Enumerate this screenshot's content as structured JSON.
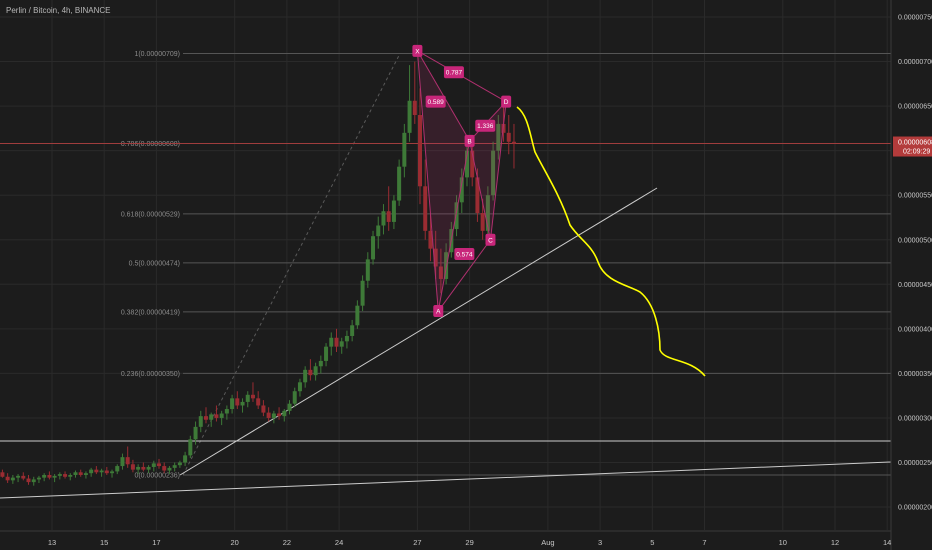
{
  "header": {
    "title": "Perlin / Bitcoin, 4h, BINANCE"
  },
  "colors": {
    "background": "#1c1c1c",
    "grid": "#2a2a2a",
    "up_candle": "#3e7a38",
    "down_candle": "#9a2c32",
    "fib_line": "#555555",
    "harmonic": "#b0306f",
    "harmonic_label": "#c8267a",
    "projection": "#ffff00",
    "trendline": "#cccccc",
    "price_line": "#a03d3d"
  },
  "chart_data": {
    "type": "candlestick",
    "title": "Perlin / Bitcoin, 4h, BINANCE",
    "y_axis": {
      "range": [
        1.8e-06,
        7.6e-06
      ],
      "ticks": [
        "0.00000750",
        "0.00000700",
        "0.00000650",
        "0.00000600",
        "0.00000550",
        "0.00000500",
        "0.00000450",
        "0.00000400",
        "0.00000350",
        "0.00000300",
        "0.00000250",
        "0.00000200"
      ]
    },
    "x_axis": {
      "ticks": [
        "13",
        "15",
        "17",
        "20",
        "22",
        "24",
        "27",
        "29",
        "Aug",
        "3",
        "5",
        "7",
        "10",
        "12",
        "14"
      ]
    },
    "current_price": {
      "value": "0.00000608",
      "countdown": "02:09:29"
    },
    "fib_levels": [
      {
        "label": "1(0.00000709)",
        "value": 7.09e-06
      },
      {
        "label": "0.786(0.00000608)",
        "value": 6.08e-06
      },
      {
        "label": "0.618(0.00000529)",
        "value": 5.29e-06
      },
      {
        "label": "0.5(0.00000474)",
        "value": 4.74e-06
      },
      {
        "label": "0.382(0.00000419)",
        "value": 4.19e-06
      },
      {
        "label": "0.236(0.00000350)",
        "value": 3.5e-06
      },
      {
        "label": "0(0.00000236)",
        "value": 2.36e-06
      }
    ],
    "harmonic_pattern": {
      "points": [
        {
          "label": "X",
          "x": 27.0,
          "y": 7.12e-06
        },
        {
          "label": "A",
          "x": 27.8,
          "y": 4.2e-06
        },
        {
          "label": "B",
          "x": 29.0,
          "y": 6.11e-06
        },
        {
          "label": "C",
          "x": 29.8,
          "y": 5e-06
        },
        {
          "label": "D",
          "x": 30.4,
          "y": 6.55e-06
        }
      ],
      "ratios": [
        {
          "label": "0.589",
          "x": 27.7,
          "y": 6.55e-06
        },
        {
          "label": "0.787",
          "x": 28.4,
          "y": 6.88e-06
        },
        {
          "label": "0.574",
          "x": 28.8,
          "y": 4.84e-06
        },
        {
          "label": "1.336",
          "x": 29.6,
          "y": 6.28e-06
        }
      ]
    },
    "candles": [
      {
        "x": 10.1,
        "o": 2.38,
        "h": 2.44,
        "l": 2.32,
        "c": 2.34
      },
      {
        "x": 10.3,
        "o": 2.34,
        "h": 2.4,
        "l": 2.3,
        "c": 2.37
      },
      {
        "x": 10.5,
        "o": 2.37,
        "h": 2.42,
        "l": 2.33,
        "c": 2.4
      },
      {
        "x": 10.7,
        "o": 2.4,
        "h": 2.43,
        "l": 2.34,
        "c": 2.36
      },
      {
        "x": 10.9,
        "o": 2.36,
        "h": 2.41,
        "l": 2.31,
        "c": 2.39
      },
      {
        "x": 11.1,
        "o": 2.39,
        "h": 2.42,
        "l": 2.33,
        "c": 2.34
      },
      {
        "x": 11.3,
        "o": 2.34,
        "h": 2.38,
        "l": 2.27,
        "c": 2.3
      },
      {
        "x": 11.5,
        "o": 2.3,
        "h": 2.36,
        "l": 2.26,
        "c": 2.33
      },
      {
        "x": 11.7,
        "o": 2.33,
        "h": 2.37,
        "l": 2.28,
        "c": 2.35
      },
      {
        "x": 11.9,
        "o": 2.35,
        "h": 2.39,
        "l": 2.3,
        "c": 2.32
      },
      {
        "x": 12.1,
        "o": 2.32,
        "h": 2.36,
        "l": 2.25,
        "c": 2.28
      },
      {
        "x": 12.3,
        "o": 2.28,
        "h": 2.34,
        "l": 2.24,
        "c": 2.31
      },
      {
        "x": 12.5,
        "o": 2.31,
        "h": 2.35,
        "l": 2.27,
        "c": 2.33
      },
      {
        "x": 12.7,
        "o": 2.33,
        "h": 2.38,
        "l": 2.29,
        "c": 2.36
      },
      {
        "x": 12.9,
        "o": 2.36,
        "h": 2.4,
        "l": 2.31,
        "c": 2.33
      },
      {
        "x": 13.1,
        "o": 2.33,
        "h": 2.37,
        "l": 2.28,
        "c": 2.35
      },
      {
        "x": 13.3,
        "o": 2.35,
        "h": 2.39,
        "l": 2.31,
        "c": 2.37
      },
      {
        "x": 13.5,
        "o": 2.37,
        "h": 2.4,
        "l": 2.32,
        "c": 2.34
      },
      {
        "x": 13.7,
        "o": 2.34,
        "h": 2.38,
        "l": 2.3,
        "c": 2.36
      },
      {
        "x": 13.9,
        "o": 2.36,
        "h": 2.41,
        "l": 2.33,
        "c": 2.39
      },
      {
        "x": 14.1,
        "o": 2.39,
        "h": 2.42,
        "l": 2.34,
        "c": 2.36
      },
      {
        "x": 14.3,
        "o": 2.36,
        "h": 2.4,
        "l": 2.32,
        "c": 2.38
      },
      {
        "x": 14.5,
        "o": 2.38,
        "h": 2.44,
        "l": 2.34,
        "c": 2.42
      },
      {
        "x": 14.7,
        "o": 2.42,
        "h": 2.46,
        "l": 2.37,
        "c": 2.39
      },
      {
        "x": 14.9,
        "o": 2.39,
        "h": 2.43,
        "l": 2.34,
        "c": 2.41
      },
      {
        "x": 15.1,
        "o": 2.41,
        "h": 2.45,
        "l": 2.36,
        "c": 2.38
      },
      {
        "x": 15.3,
        "o": 2.38,
        "h": 2.42,
        "l": 2.33,
        "c": 2.4
      },
      {
        "x": 15.5,
        "o": 2.4,
        "h": 2.48,
        "l": 2.37,
        "c": 2.46
      },
      {
        "x": 15.7,
        "o": 2.46,
        "h": 2.6,
        "l": 2.42,
        "c": 2.56
      },
      {
        "x": 15.9,
        "o": 2.56,
        "h": 2.68,
        "l": 2.44,
        "c": 2.48
      },
      {
        "x": 16.1,
        "o": 2.48,
        "h": 2.53,
        "l": 2.39,
        "c": 2.42
      },
      {
        "x": 16.3,
        "o": 2.42,
        "h": 2.48,
        "l": 2.37,
        "c": 2.45
      },
      {
        "x": 16.5,
        "o": 2.45,
        "h": 2.5,
        "l": 2.4,
        "c": 2.42
      },
      {
        "x": 16.7,
        "o": 2.42,
        "h": 2.47,
        "l": 2.38,
        "c": 2.45
      },
      {
        "x": 16.9,
        "o": 2.45,
        "h": 2.52,
        "l": 2.4,
        "c": 2.49
      },
      {
        "x": 17.1,
        "o": 2.49,
        "h": 2.54,
        "l": 2.43,
        "c": 2.46
      },
      {
        "x": 17.3,
        "o": 2.46,
        "h": 2.5,
        "l": 2.38,
        "c": 2.41
      },
      {
        "x": 17.5,
        "o": 2.41,
        "h": 2.46,
        "l": 2.37,
        "c": 2.44
      },
      {
        "x": 17.7,
        "o": 2.44,
        "h": 2.5,
        "l": 2.4,
        "c": 2.47
      },
      {
        "x": 17.9,
        "o": 2.47,
        "h": 2.52,
        "l": 2.44,
        "c": 2.5
      },
      {
        "x": 18.1,
        "o": 2.5,
        "h": 2.62,
        "l": 2.46,
        "c": 2.58
      },
      {
        "x": 18.3,
        "o": 2.58,
        "h": 2.8,
        "l": 2.55,
        "c": 2.76
      },
      {
        "x": 18.5,
        "o": 2.76,
        "h": 2.96,
        "l": 2.7,
        "c": 2.9
      },
      {
        "x": 18.7,
        "o": 2.9,
        "h": 3.08,
        "l": 2.84,
        "c": 3.02
      },
      {
        "x": 18.9,
        "o": 3.02,
        "h": 3.12,
        "l": 2.94,
        "c": 2.98
      },
      {
        "x": 19.1,
        "o": 2.98,
        "h": 3.06,
        "l": 2.9,
        "c": 3.04
      },
      {
        "x": 19.3,
        "o": 3.04,
        "h": 3.14,
        "l": 2.96,
        "c": 3.0
      },
      {
        "x": 19.5,
        "o": 3.0,
        "h": 3.08,
        "l": 2.92,
        "c": 3.05
      },
      {
        "x": 19.7,
        "o": 3.05,
        "h": 3.14,
        "l": 2.98,
        "c": 3.1
      },
      {
        "x": 19.9,
        "o": 3.1,
        "h": 3.26,
        "l": 3.05,
        "c": 3.22
      },
      {
        "x": 20.1,
        "o": 3.22,
        "h": 3.3,
        "l": 3.1,
        "c": 3.14
      },
      {
        "x": 20.3,
        "o": 3.14,
        "h": 3.22,
        "l": 3.06,
        "c": 3.18
      },
      {
        "x": 20.5,
        "o": 3.18,
        "h": 3.3,
        "l": 3.12,
        "c": 3.26
      },
      {
        "x": 20.7,
        "o": 3.26,
        "h": 3.4,
        "l": 3.18,
        "c": 3.22
      },
      {
        "x": 20.9,
        "o": 3.22,
        "h": 3.3,
        "l": 3.1,
        "c": 3.14
      },
      {
        "x": 21.1,
        "o": 3.14,
        "h": 3.2,
        "l": 3.02,
        "c": 3.06
      },
      {
        "x": 21.3,
        "o": 3.06,
        "h": 3.12,
        "l": 2.96,
        "c": 3.0
      },
      {
        "x": 21.5,
        "o": 3.0,
        "h": 3.08,
        "l": 2.94,
        "c": 3.05
      },
      {
        "x": 21.7,
        "o": 3.05,
        "h": 3.12,
        "l": 2.98,
        "c": 3.02
      },
      {
        "x": 21.9,
        "o": 3.02,
        "h": 3.1,
        "l": 2.96,
        "c": 3.08
      },
      {
        "x": 22.1,
        "o": 3.08,
        "h": 3.2,
        "l": 3.04,
        "c": 3.16
      },
      {
        "x": 22.3,
        "o": 3.16,
        "h": 3.34,
        "l": 3.12,
        "c": 3.3
      },
      {
        "x": 22.5,
        "o": 3.3,
        "h": 3.44,
        "l": 3.24,
        "c": 3.4
      },
      {
        "x": 22.7,
        "o": 3.4,
        "h": 3.58,
        "l": 3.34,
        "c": 3.54
      },
      {
        "x": 22.9,
        "o": 3.54,
        "h": 3.66,
        "l": 3.42,
        "c": 3.48
      },
      {
        "x": 23.1,
        "o": 3.48,
        "h": 3.62,
        "l": 3.42,
        "c": 3.58
      },
      {
        "x": 23.3,
        "o": 3.58,
        "h": 3.7,
        "l": 3.5,
        "c": 3.64
      },
      {
        "x": 23.5,
        "o": 3.64,
        "h": 3.84,
        "l": 3.58,
        "c": 3.8
      },
      {
        "x": 23.7,
        "o": 3.8,
        "h": 3.96,
        "l": 3.7,
        "c": 3.9
      },
      {
        "x": 23.9,
        "o": 3.9,
        "h": 4.0,
        "l": 3.74,
        "c": 3.8
      },
      {
        "x": 24.1,
        "o": 3.8,
        "h": 3.9,
        "l": 3.72,
        "c": 3.86
      },
      {
        "x": 24.3,
        "o": 3.86,
        "h": 3.98,
        "l": 3.78,
        "c": 3.92
      },
      {
        "x": 24.5,
        "o": 3.92,
        "h": 4.1,
        "l": 3.86,
        "c": 4.04
      },
      {
        "x": 24.7,
        "o": 4.04,
        "h": 4.32,
        "l": 4.0,
        "c": 4.26
      },
      {
        "x": 24.9,
        "o": 4.26,
        "h": 4.6,
        "l": 4.2,
        "c": 4.54
      },
      {
        "x": 25.1,
        "o": 4.54,
        "h": 4.86,
        "l": 4.46,
        "c": 4.78
      },
      {
        "x": 25.3,
        "o": 4.78,
        "h": 5.1,
        "l": 4.72,
        "c": 5.04
      },
      {
        "x": 25.5,
        "o": 5.04,
        "h": 5.26,
        "l": 4.9,
        "c": 5.16
      },
      {
        "x": 25.7,
        "o": 5.16,
        "h": 5.4,
        "l": 5.06,
        "c": 5.32
      },
      {
        "x": 25.9,
        "o": 5.32,
        "h": 5.6,
        "l": 5.1,
        "c": 5.2
      },
      {
        "x": 26.1,
        "o": 5.2,
        "h": 5.5,
        "l": 5.12,
        "c": 5.44
      },
      {
        "x": 26.3,
        "o": 5.44,
        "h": 5.9,
        "l": 5.38,
        "c": 5.82
      },
      {
        "x": 26.5,
        "o": 5.82,
        "h": 6.3,
        "l": 5.7,
        "c": 6.2
      },
      {
        "x": 26.7,
        "o": 6.2,
        "h": 6.96,
        "l": 6.1,
        "c": 6.56
      },
      {
        "x": 26.9,
        "o": 6.56,
        "h": 7.0,
        "l": 6.3,
        "c": 6.4
      },
      {
        "x": 27.1,
        "o": 6.4,
        "h": 6.7,
        "l": 5.4,
        "c": 5.6
      },
      {
        "x": 27.3,
        "o": 5.6,
        "h": 5.9,
        "l": 5.0,
        "c": 5.1
      },
      {
        "x": 27.5,
        "o": 5.1,
        "h": 5.3,
        "l": 4.76,
        "c": 4.9
      },
      {
        "x": 27.7,
        "o": 4.9,
        "h": 5.1,
        "l": 4.56,
        "c": 4.7
      },
      {
        "x": 27.9,
        "o": 4.7,
        "h": 4.9,
        "l": 4.4,
        "c": 4.56
      },
      {
        "x": 28.1,
        "o": 4.56,
        "h": 4.96,
        "l": 4.5,
        "c": 4.86
      },
      {
        "x": 28.3,
        "o": 4.86,
        "h": 5.2,
        "l": 4.8,
        "c": 5.12
      },
      {
        "x": 28.5,
        "o": 5.12,
        "h": 5.5,
        "l": 5.04,
        "c": 5.42
      },
      {
        "x": 28.7,
        "o": 5.42,
        "h": 5.8,
        "l": 5.3,
        "c": 5.7
      },
      {
        "x": 28.9,
        "o": 5.7,
        "h": 6.12,
        "l": 5.6,
        "c": 6.0
      },
      {
        "x": 29.1,
        "o": 6.0,
        "h": 6.14,
        "l": 5.6,
        "c": 5.7
      },
      {
        "x": 29.3,
        "o": 5.7,
        "h": 5.8,
        "l": 5.2,
        "c": 5.3
      },
      {
        "x": 29.5,
        "o": 5.3,
        "h": 5.46,
        "l": 5.0,
        "c": 5.1
      },
      {
        "x": 29.7,
        "o": 5.1,
        "h": 5.6,
        "l": 5.04,
        "c": 5.5
      },
      {
        "x": 29.9,
        "o": 5.5,
        "h": 6.1,
        "l": 5.44,
        "c": 6.0
      },
      {
        "x": 30.1,
        "o": 6.0,
        "h": 6.4,
        "l": 5.9,
        "c": 6.3
      },
      {
        "x": 30.3,
        "o": 6.3,
        "h": 6.6,
        "l": 6.1,
        "c": 6.2
      },
      {
        "x": 30.5,
        "o": 6.2,
        "h": 6.4,
        "l": 5.96,
        "c": 6.1
      },
      {
        "x": 30.7,
        "o": 6.1,
        "h": 6.3,
        "l": 5.8,
        "c": 6.08
      }
    ]
  }
}
